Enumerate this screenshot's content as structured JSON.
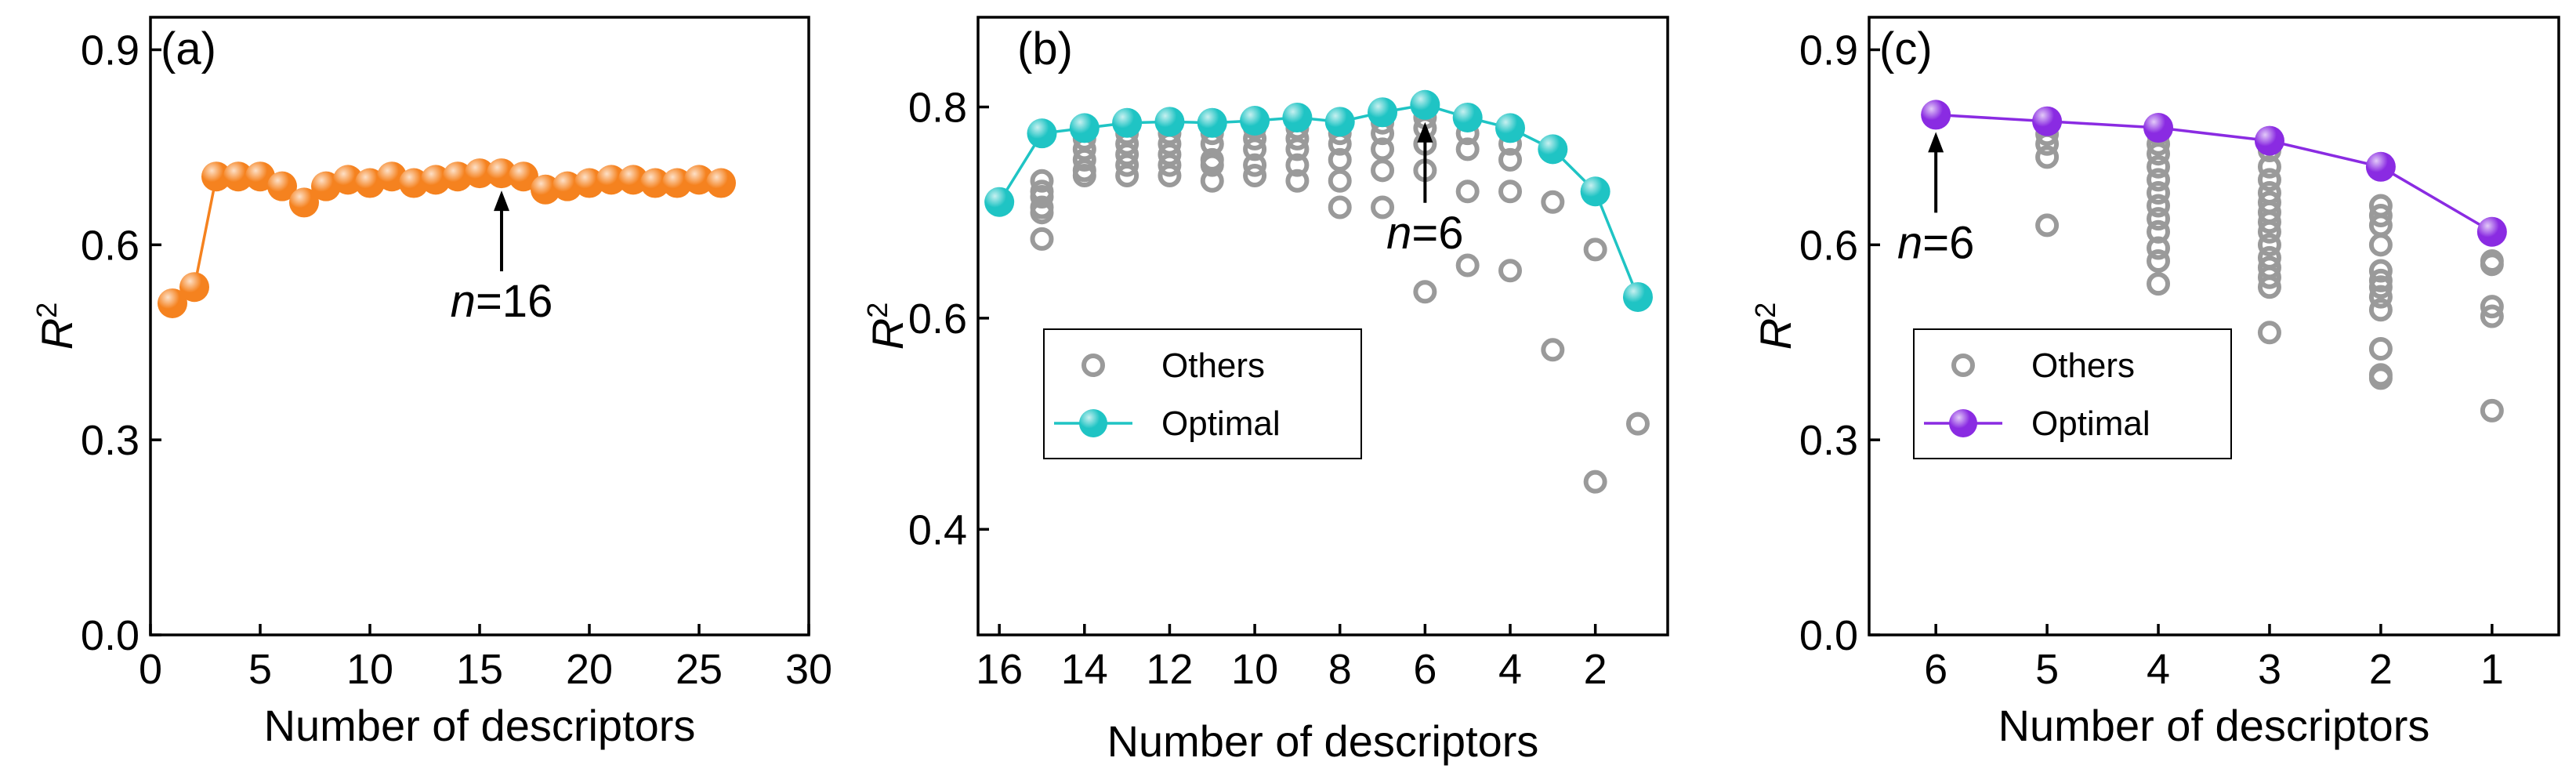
{
  "chart_data": [
    {
      "type": "line",
      "panel_label": "(a)",
      "xlabel": "Number of descriptors",
      "ylabel": "R",
      "ylabel_sup": "2",
      "xlim": [
        0,
        30
      ],
      "ylim": [
        0,
        0.95
      ],
      "xticks": [
        0,
        5,
        10,
        15,
        20,
        25,
        30
      ],
      "yticks": [
        0.0,
        0.3,
        0.6,
        0.9
      ],
      "ytick_labels": [
        "0.0",
        "0.3",
        "0.6",
        "0.9"
      ],
      "color": "#F5821F",
      "series": [
        {
          "name": "R2",
          "x": [
            1,
            2,
            3,
            4,
            5,
            6,
            7,
            8,
            9,
            10,
            11,
            12,
            13,
            14,
            15,
            16,
            17,
            18,
            19,
            20,
            21,
            22,
            23,
            24,
            25,
            26
          ],
          "y": [
            0.51,
            0.535,
            0.705,
            0.705,
            0.705,
            0.69,
            0.665,
            0.69,
            0.7,
            0.695,
            0.705,
            0.695,
            0.7,
            0.705,
            0.71,
            0.71,
            0.705,
            0.685,
            0.69,
            0.695,
            0.7,
            0.7,
            0.695,
            0.695,
            0.7,
            0.695
          ]
        }
      ],
      "annotation": {
        "prefix": "n",
        "text": "=16",
        "x": 16,
        "y": 0.71
      }
    },
    {
      "type": "scatter",
      "panel_label": "(b)",
      "xlabel": "Number of descriptors",
      "ylabel": "R",
      "ylabel_sup": "2",
      "xlim": [
        16.5,
        0.3
      ],
      "ylim": [
        0.3,
        0.885
      ],
      "xticks": [
        16,
        14,
        12,
        10,
        8,
        6,
        4,
        2
      ],
      "yticks": [
        0.4,
        0.6,
        0.8
      ],
      "ytick_labels": [
        "0.4",
        "0.6",
        "0.8"
      ],
      "optimal_color": "#1FC4C4",
      "others_color": "#9A9A9A",
      "legend": {
        "others": "Others",
        "optimal": "Optimal"
      },
      "optimal": {
        "x": [
          16,
          15,
          14,
          13,
          12,
          11,
          10,
          9,
          8,
          7,
          6,
          5,
          4,
          3,
          2,
          1
        ],
        "y": [
          0.71,
          0.775,
          0.78,
          0.785,
          0.786,
          0.785,
          0.787,
          0.79,
          0.786,
          0.795,
          0.802,
          0.79,
          0.78,
          0.76,
          0.72,
          0.62
        ]
      },
      "others": [
        {
          "x": 15,
          "y": [
            0.73,
            0.72,
            0.715,
            0.705,
            0.7,
            0.675
          ]
        },
        {
          "x": 14,
          "y": [
            0.77,
            0.76,
            0.75,
            0.74,
            0.735
          ]
        },
        {
          "x": 13,
          "y": [
            0.775,
            0.765,
            0.755,
            0.745,
            0.735
          ]
        },
        {
          "x": 12,
          "y": [
            0.775,
            0.765,
            0.755,
            0.745,
            0.735
          ]
        },
        {
          "x": 11,
          "y": [
            0.775,
            0.765,
            0.75,
            0.745,
            0.73
          ]
        },
        {
          "x": 10,
          "y": [
            0.78,
            0.77,
            0.76,
            0.745,
            0.735
          ]
        },
        {
          "x": 9,
          "y": [
            0.78,
            0.77,
            0.76,
            0.745,
            0.73
          ]
        },
        {
          "x": 8,
          "y": [
            0.775,
            0.765,
            0.75,
            0.73,
            0.705
          ]
        },
        {
          "x": 7,
          "y": [
            0.785,
            0.775,
            0.76,
            0.74,
            0.705
          ]
        },
        {
          "x": 6,
          "y": [
            0.79,
            0.78,
            0.765,
            0.74,
            0.625
          ]
        },
        {
          "x": 5,
          "y": [
            0.775,
            0.76,
            0.72,
            0.65
          ]
        },
        {
          "x": 4,
          "y": [
            0.765,
            0.75,
            0.72,
            0.645
          ]
        },
        {
          "x": 3,
          "y": [
            0.71,
            0.57
          ]
        },
        {
          "x": 2,
          "y": [
            0.665,
            0.445
          ]
        },
        {
          "x": 1,
          "y": [
            0.5
          ]
        }
      ],
      "annotation": {
        "prefix": "n",
        "text": "=6",
        "x": 6,
        "y": 0.802
      }
    },
    {
      "type": "scatter",
      "panel_label": "(c)",
      "xlabel": "Number of descriptors",
      "ylabel": "R",
      "ylabel_sup": "2",
      "xlim": [
        6.6,
        0.4
      ],
      "ylim": [
        0,
        0.95
      ],
      "xticks": [
        6,
        5,
        4,
        3,
        2,
        1
      ],
      "yticks": [
        0.0,
        0.3,
        0.6,
        0.9
      ],
      "ytick_labels": [
        "0.0",
        "0.3",
        "0.6",
        "0.9"
      ],
      "optimal_color": "#8A2BE2",
      "others_color": "#9A9A9A",
      "legend": {
        "others": "Others",
        "optimal": "Optimal"
      },
      "optimal": {
        "x": [
          6,
          5,
          4,
          3,
          2,
          1
        ],
        "y": [
          0.8,
          0.79,
          0.78,
          0.76,
          0.72,
          0.62
        ]
      },
      "others": [
        {
          "x": 5,
          "y": [
            0.77,
            0.755,
            0.735,
            0.63
          ]
        },
        {
          "x": 4,
          "y": [
            0.77,
            0.755,
            0.74,
            0.72,
            0.7,
            0.68,
            0.66,
            0.64,
            0.62,
            0.595,
            0.575,
            0.54
          ]
        },
        {
          "x": 3,
          "y": [
            0.745,
            0.72,
            0.7,
            0.68,
            0.665,
            0.65,
            0.635,
            0.62,
            0.6,
            0.58,
            0.565,
            0.55,
            0.535,
            0.465
          ]
        },
        {
          "x": 2,
          "y": [
            0.66,
            0.645,
            0.63,
            0.6,
            0.56,
            0.545,
            0.535,
            0.52,
            0.5,
            0.44,
            0.4,
            0.395
          ]
        },
        {
          "x": 1,
          "y": [
            0.575,
            0.57,
            0.505,
            0.49,
            0.345
          ]
        }
      ],
      "annotation": {
        "prefix": "n",
        "text": "=6",
        "x": 6,
        "y": 0.8
      }
    }
  ]
}
